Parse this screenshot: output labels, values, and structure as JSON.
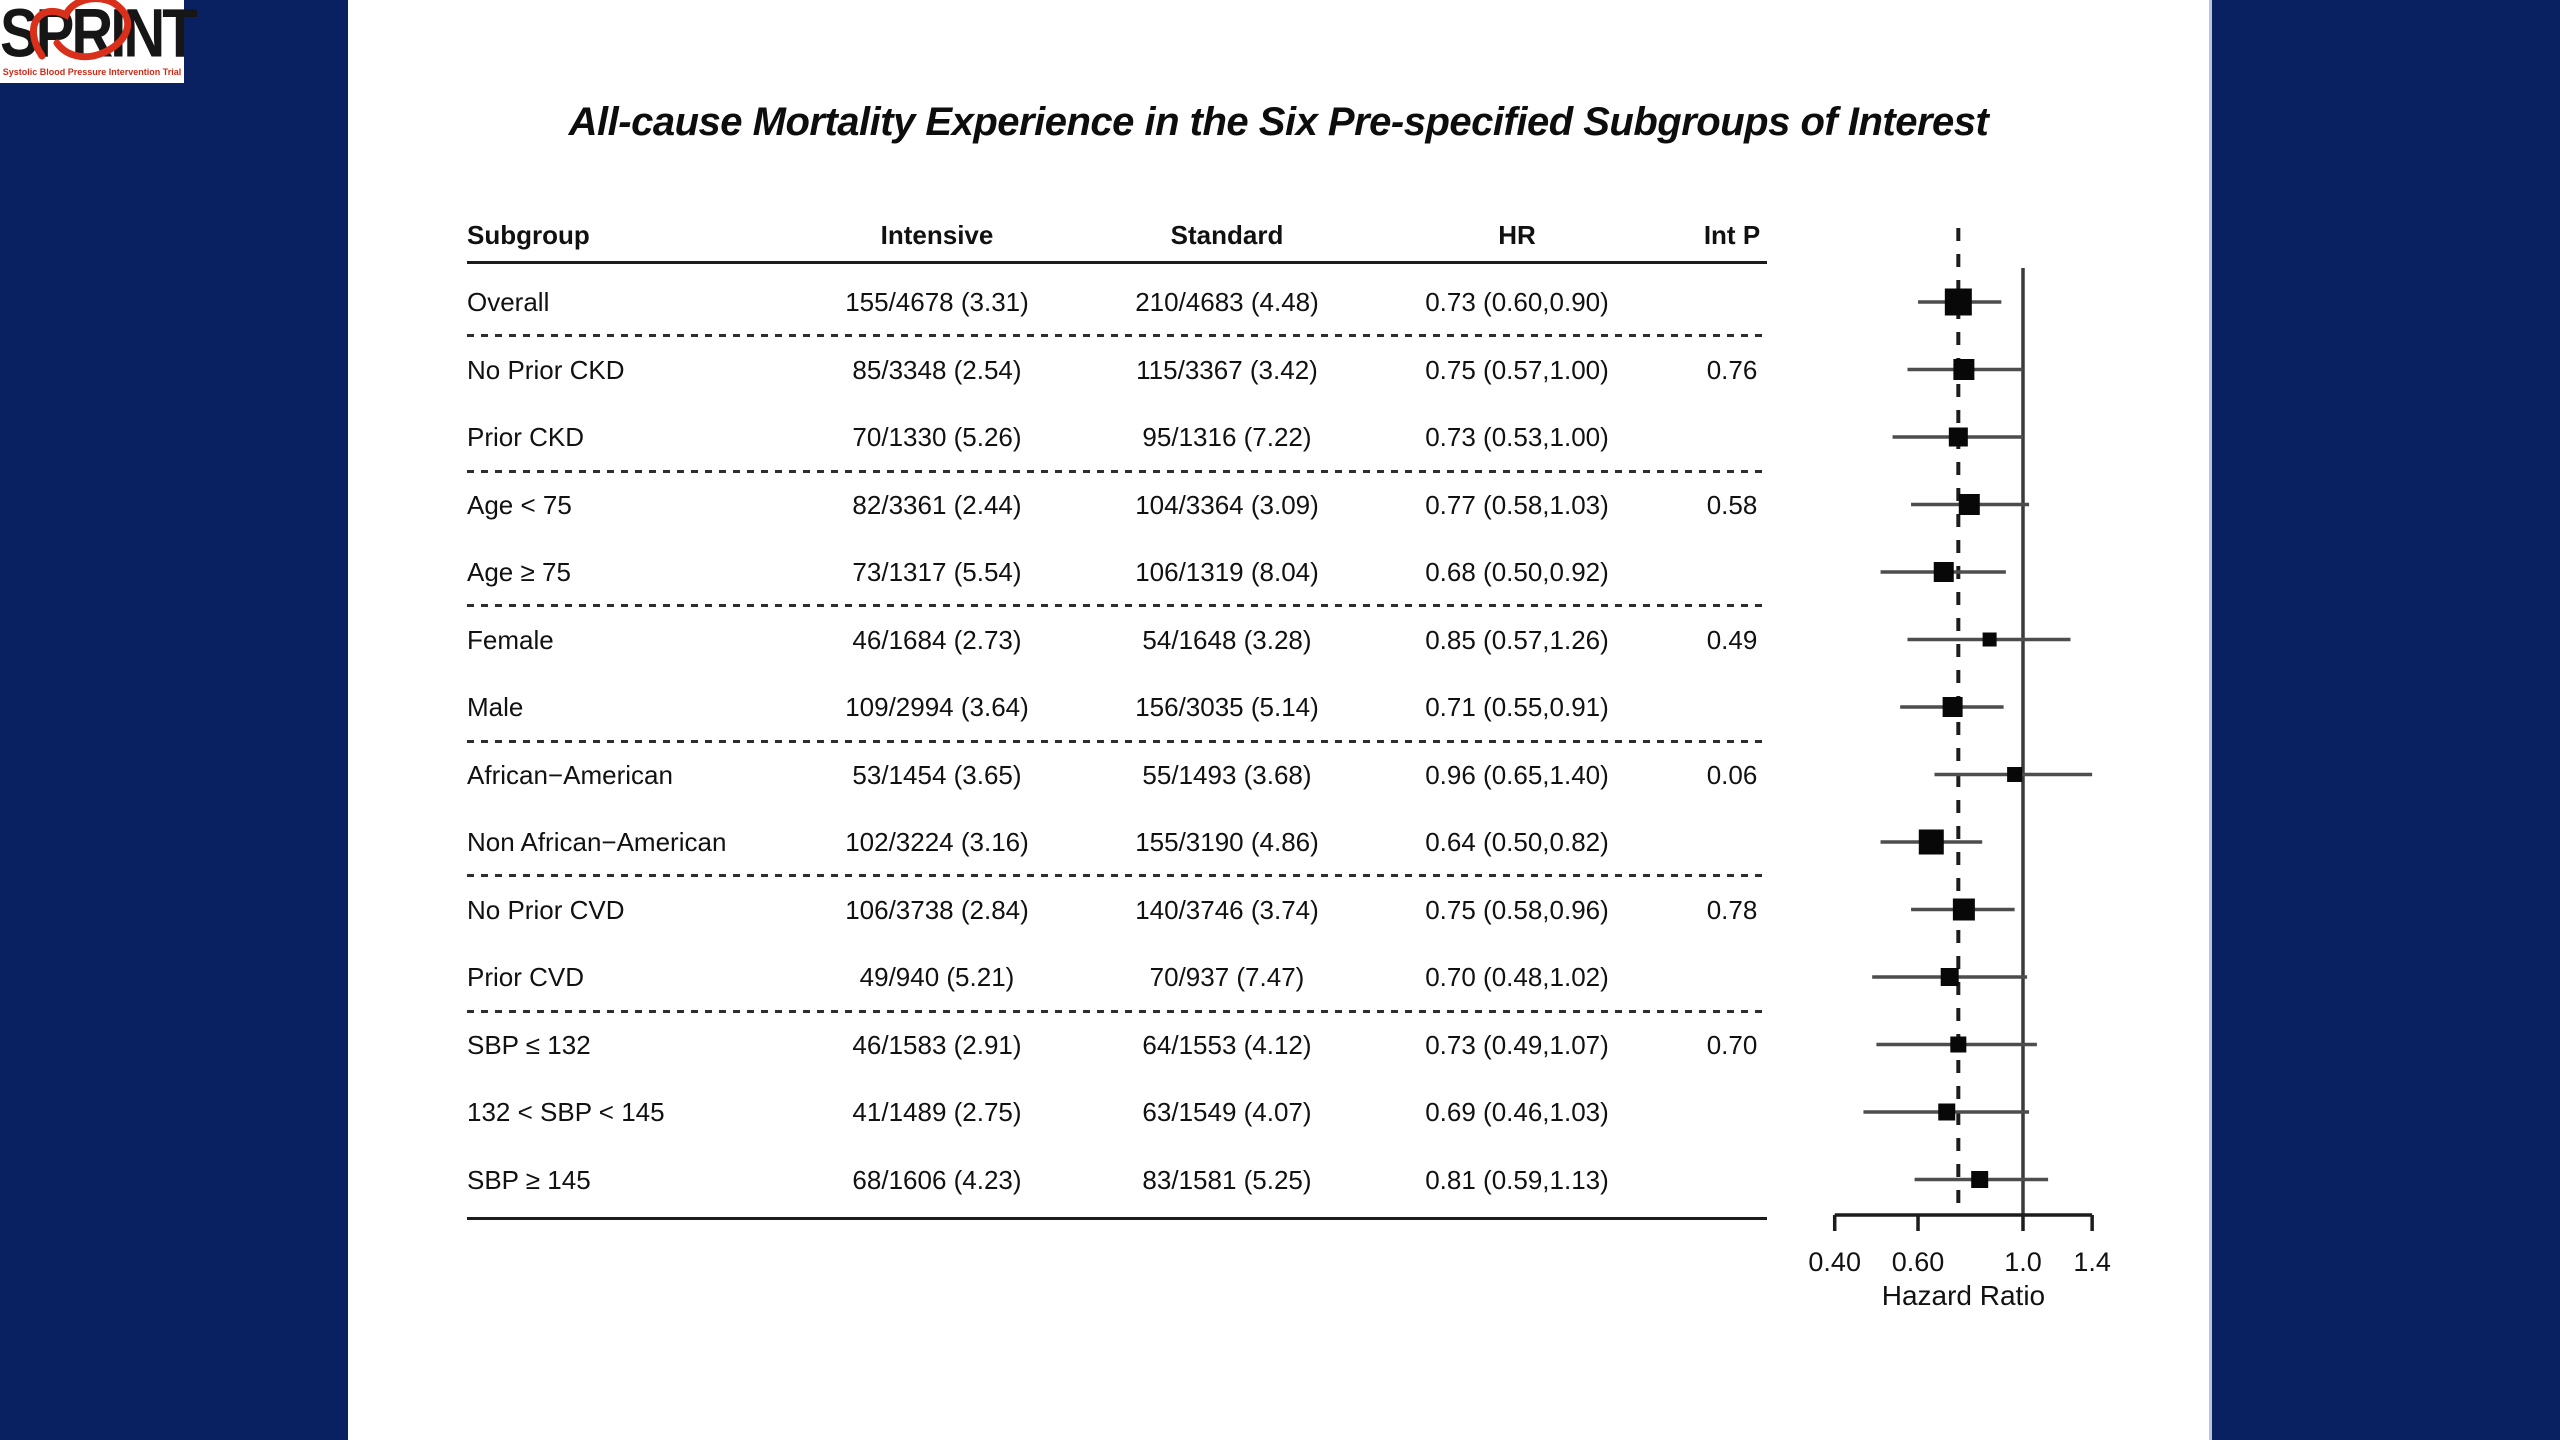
{
  "page": {
    "band_color": "#0a2161",
    "background": "#ffffff"
  },
  "logo": {
    "text": "SPRINT",
    "tagline": "Systolic Blood Pressure Intervention Trial",
    "accent_color": "#cf2a17"
  },
  "title": "All-cause Mortality Experience in the Six Pre-specified Subgroups of Interest",
  "table": {
    "headers": [
      "Subgroup",
      "Intensive",
      "Standard",
      "HR",
      "Int P"
    ],
    "rows": [
      {
        "subgroup": "Overall",
        "intensive": "155/4678 (3.31)",
        "standard": "210/4683 (4.48)",
        "hr": "0.73 (0.60,0.90)",
        "int_p": ""
      },
      {
        "subgroup": "No Prior CKD",
        "intensive": "85/3348 (2.54)",
        "standard": "115/3367 (3.42)",
        "hr": "0.75 (0.57,1.00)",
        "int_p": "0.76"
      },
      {
        "subgroup": "Prior CKD",
        "intensive": "70/1330 (5.26)",
        "standard": "95/1316 (7.22)",
        "hr": "0.73 (0.53,1.00)",
        "int_p": ""
      },
      {
        "subgroup": "Age < 75",
        "intensive": "82/3361 (2.44)",
        "standard": "104/3364 (3.09)",
        "hr": "0.77 (0.58,1.03)",
        "int_p": "0.58"
      },
      {
        "subgroup": "Age ≥ 75",
        "intensive": "73/1317 (5.54)",
        "standard": "106/1319 (8.04)",
        "hr": "0.68 (0.50,0.92)",
        "int_p": ""
      },
      {
        "subgroup": "Female",
        "intensive": "46/1684 (2.73)",
        "standard": "54/1648 (3.28)",
        "hr": "0.85 (0.57,1.26)",
        "int_p": "0.49"
      },
      {
        "subgroup": "Male",
        "intensive": "109/2994 (3.64)",
        "standard": "156/3035 (5.14)",
        "hr": "0.71 (0.55,0.91)",
        "int_p": ""
      },
      {
        "subgroup": "African−American",
        "intensive": "53/1454 (3.65)",
        "standard": "55/1493 (3.68)",
        "hr": "0.96 (0.65,1.40)",
        "int_p": "0.06"
      },
      {
        "subgroup": "Non African−American",
        "intensive": "102/3224 (3.16)",
        "standard": "155/3190 (4.86)",
        "hr": "0.64 (0.50,0.82)",
        "int_p": ""
      },
      {
        "subgroup": "No Prior CVD",
        "intensive": "106/3738 (2.84)",
        "standard": "140/3746 (3.74)",
        "hr": "0.75 (0.58,0.96)",
        "int_p": "0.78"
      },
      {
        "subgroup": "Prior CVD",
        "intensive": "49/940 (5.21)",
        "standard": "70/937 (7.47)",
        "hr": "0.70 (0.48,1.02)",
        "int_p": ""
      },
      {
        "subgroup": "SBP ≤ 132",
        "intensive": "46/1583 (2.91)",
        "standard": "64/1553 (4.12)",
        "hr": "0.73 (0.49,1.07)",
        "int_p": "0.70"
      },
      {
        "subgroup": "132 < SBP < 145",
        "intensive": "41/1489 (2.75)",
        "standard": "63/1549 (4.07)",
        "hr": "0.69 (0.46,1.03)",
        "int_p": ""
      },
      {
        "subgroup": "SBP ≥ 145",
        "intensive": "68/1606 (4.23)",
        "standard": "83/1581 (5.25)",
        "hr": "0.81 (0.59,1.13)",
        "int_p": ""
      }
    ]
  },
  "chart_data": {
    "type": "forest",
    "xlabel": "Hazard Ratio",
    "log_scale": true,
    "x_ticks": [
      0.4,
      0.6,
      1.0,
      1.4
    ],
    "x_tick_labels": [
      "0.40",
      "0.60",
      "1.0",
      "1.4"
    ],
    "reference_line": 1.0,
    "overall_dashed_line": 0.73,
    "rows": [
      {
        "label": "Overall",
        "hr": 0.73,
        "lo": 0.6,
        "hi": 0.9,
        "size": 27
      },
      {
        "label": "No Prior CKD",
        "hr": 0.75,
        "lo": 0.57,
        "hi": 1.0,
        "size": 21
      },
      {
        "label": "Prior CKD",
        "hr": 0.73,
        "lo": 0.53,
        "hi": 1.0,
        "size": 19
      },
      {
        "label": "Age < 75",
        "hr": 0.77,
        "lo": 0.58,
        "hi": 1.03,
        "size": 21
      },
      {
        "label": "Age ≥ 75",
        "hr": 0.68,
        "lo": 0.5,
        "hi": 0.92,
        "size": 20
      },
      {
        "label": "Female",
        "hr": 0.85,
        "lo": 0.57,
        "hi": 1.26,
        "size": 14
      },
      {
        "label": "Male",
        "hr": 0.71,
        "lo": 0.55,
        "hi": 0.91,
        "size": 20
      },
      {
        "label": "African−American",
        "hr": 0.96,
        "lo": 0.65,
        "hi": 1.4,
        "size": 15
      },
      {
        "label": "Non African−American",
        "hr": 0.64,
        "lo": 0.5,
        "hi": 0.82,
        "size": 25
      },
      {
        "label": "No Prior CVD",
        "hr": 0.75,
        "lo": 0.58,
        "hi": 0.96,
        "size": 22
      },
      {
        "label": "Prior CVD",
        "hr": 0.7,
        "lo": 0.48,
        "hi": 1.02,
        "size": 18
      },
      {
        "label": "SBP ≤ 132",
        "hr": 0.73,
        "lo": 0.49,
        "hi": 1.07,
        "size": 16
      },
      {
        "label": "132 < SBP < 145",
        "hr": 0.69,
        "lo": 0.46,
        "hi": 1.03,
        "size": 17
      },
      {
        "label": "SBP ≥ 145",
        "hr": 0.81,
        "lo": 0.59,
        "hi": 1.13,
        "size": 17
      }
    ]
  }
}
